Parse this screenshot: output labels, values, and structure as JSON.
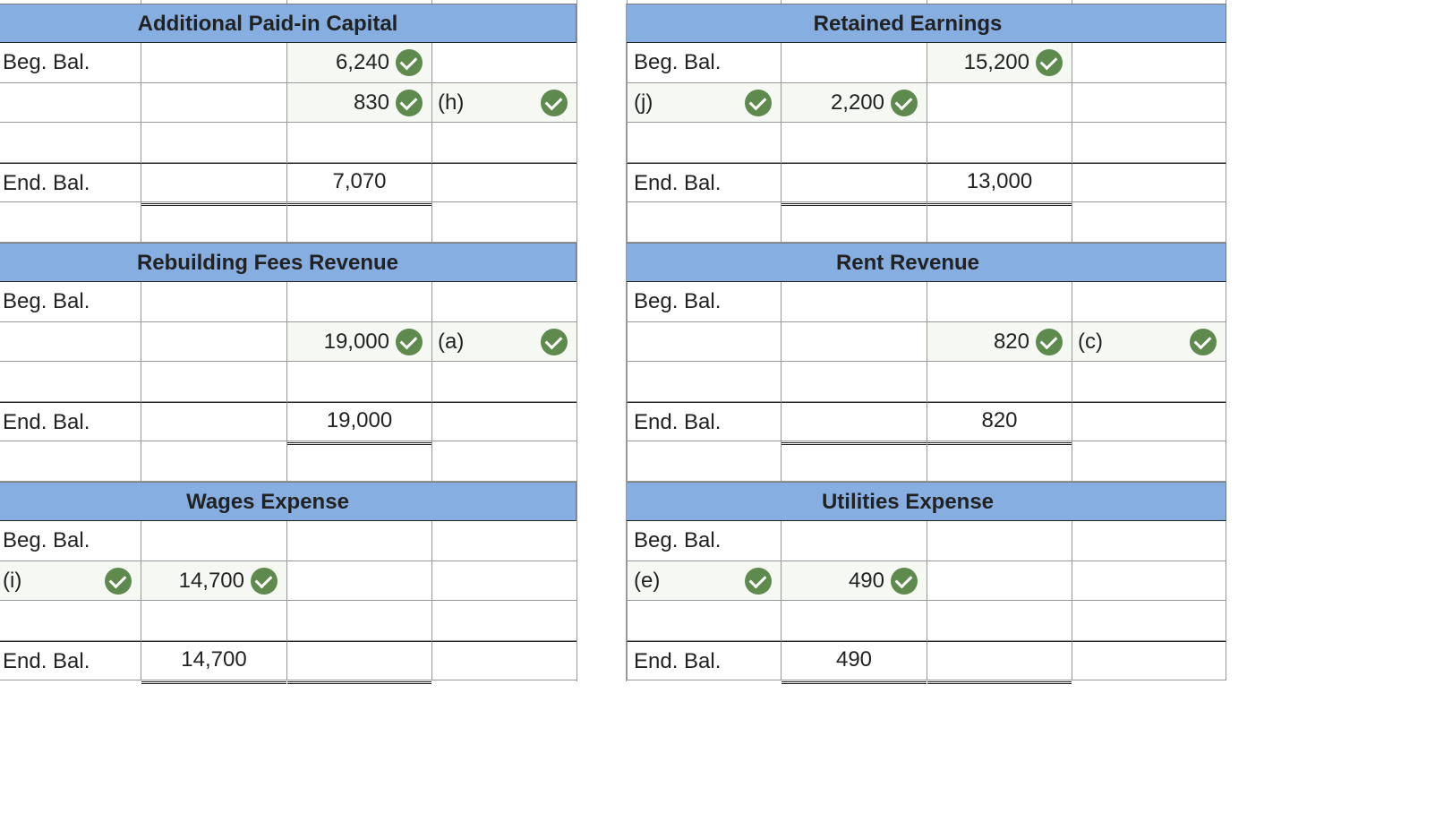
{
  "accounts": {
    "apic": {
      "title": "Additional Paid-in Capital",
      "rows": [
        {
          "label": "Beg. Bal.",
          "debit": "",
          "credit": "6,240",
          "ref": ""
        },
        {
          "label": "",
          "debit": "",
          "credit": "830",
          "ref": "(h)"
        },
        {
          "label": "",
          "debit": "",
          "credit": "",
          "ref": ""
        },
        {
          "label": "End. Bal.",
          "debit": "",
          "credit": "7,070",
          "ref": ""
        }
      ]
    },
    "re": {
      "title": "Retained Earnings",
      "rows": [
        {
          "label": "Beg. Bal.",
          "debit": "",
          "credit": "15,200",
          "ref": ""
        },
        {
          "label": "(j)",
          "debit": "2,200",
          "credit": "",
          "ref": ""
        },
        {
          "label": "",
          "debit": "",
          "credit": "",
          "ref": ""
        },
        {
          "label": "End. Bal.",
          "debit": "",
          "credit": "13,000",
          "ref": ""
        }
      ]
    },
    "rfr": {
      "title": "Rebuilding Fees Revenue",
      "rows": [
        {
          "label": "Beg. Bal.",
          "debit": "",
          "credit": "",
          "ref": ""
        },
        {
          "label": "",
          "debit": "",
          "credit": "19,000",
          "ref": "(a)"
        },
        {
          "label": "",
          "debit": "",
          "credit": "",
          "ref": ""
        },
        {
          "label": "End. Bal.",
          "debit": "",
          "credit": "19,000",
          "ref": ""
        }
      ]
    },
    "rr": {
      "title": "Rent Revenue",
      "rows": [
        {
          "label": "Beg. Bal.",
          "debit": "",
          "credit": "",
          "ref": ""
        },
        {
          "label": "",
          "debit": "",
          "credit": "820",
          "ref": "(c)"
        },
        {
          "label": "",
          "debit": "",
          "credit": "",
          "ref": ""
        },
        {
          "label": "End. Bal.",
          "debit": "",
          "credit": "820",
          "ref": ""
        }
      ]
    },
    "we": {
      "title": "Wages Expense",
      "rows": [
        {
          "label": "Beg. Bal.",
          "debit": "",
          "credit": "",
          "ref": ""
        },
        {
          "label": "(i)",
          "debit": "14,700",
          "credit": "",
          "ref": ""
        },
        {
          "label": "",
          "debit": "",
          "credit": "",
          "ref": ""
        },
        {
          "label": "End. Bal.",
          "debit": "14,700",
          "credit": "",
          "ref": ""
        }
      ]
    },
    "ue": {
      "title": "Utilities Expense",
      "rows": [
        {
          "label": "Beg. Bal.",
          "debit": "",
          "credit": "",
          "ref": ""
        },
        {
          "label": "(e)",
          "debit": "490",
          "credit": "",
          "ref": ""
        },
        {
          "label": "",
          "debit": "",
          "credit": "",
          "ref": ""
        },
        {
          "label": "End. Bal.",
          "debit": "490",
          "credit": "",
          "ref": ""
        }
      ]
    }
  },
  "colors": {
    "header": "#86aee0",
    "check": "#5e8a4e",
    "answer_bg": "#f6f8f3"
  },
  "icons": {
    "correct": "check-circle-icon"
  }
}
